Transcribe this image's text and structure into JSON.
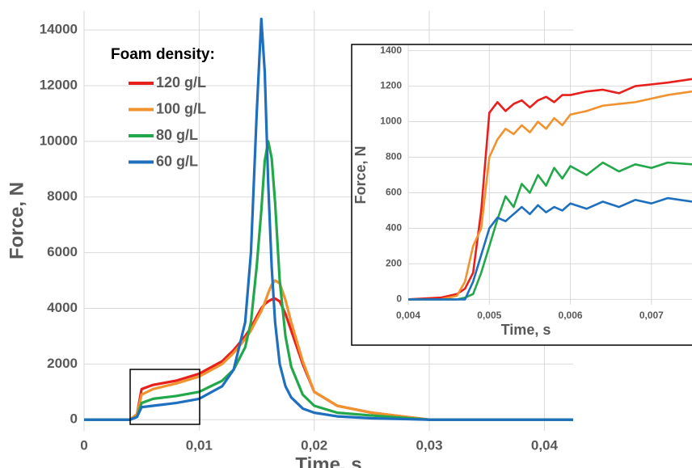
{
  "chart_data": [
    {
      "type": "line",
      "x_label": "Time, s",
      "y_label": "Force, N",
      "legend": "upper left",
      "legend_title": "Foam density:",
      "grid": true,
      "xlim": [
        0,
        0.0425
      ],
      "ylim": [
        -400,
        14700
      ],
      "xticks": [
        0,
        {
          "value": 0.01,
          "label": "0,01"
        },
        {
          "value": 0.02,
          "label": "0,02"
        },
        {
          "value": 0.03,
          "label": "0,03"
        },
        {
          "value": 0.04,
          "label": "0,04"
        }
      ],
      "yticks": [
        0,
        2000,
        4000,
        6000,
        8000,
        10000,
        12000,
        14000
      ],
      "x": [
        0,
        0.004,
        0.0046,
        0.005,
        0.006,
        0.008,
        0.01,
        0.012,
        0.013,
        0.014,
        0.0145,
        0.015,
        0.0154,
        0.0157,
        0.016,
        0.0163,
        0.0166,
        0.017,
        0.0175,
        0.018,
        0.019,
        0.02,
        0.022,
        0.025,
        0.03,
        0.035,
        0.0425
      ],
      "series": [
        {
          "name": "120 g/L",
          "color": "#e8201c",
          "values": [
            0,
            0,
            200,
            1100,
            1250,
            1400,
            1650,
            2100,
            2500,
            3000,
            3300,
            3700,
            4000,
            4150,
            4250,
            4320,
            4350,
            4250,
            3800,
            3200,
            2000,
            1000,
            500,
            250,
            0,
            0,
            0
          ]
        },
        {
          "name": "100 g/L",
          "color": "#f0922e",
          "values": [
            0,
            0,
            200,
            900,
            1100,
            1300,
            1550,
            2000,
            2400,
            2900,
            3200,
            3600,
            3900,
            4200,
            4550,
            4850,
            5000,
            4900,
            4300,
            3500,
            2100,
            1000,
            500,
            250,
            0,
            0,
            0
          ]
        },
        {
          "name": "80 g/L",
          "color": "#22a84a",
          "values": [
            0,
            0,
            100,
            600,
            750,
            850,
            1000,
            1400,
            1800,
            2600,
            3500,
            5500,
            7500,
            9300,
            10000,
            9400,
            7800,
            5000,
            3000,
            1900,
            900,
            500,
            250,
            150,
            0,
            0,
            0
          ]
        },
        {
          "name": "60 g/L",
          "color": "#1f6fbf",
          "values": [
            0,
            0,
            100,
            450,
            500,
            600,
            750,
            1200,
            1800,
            3500,
            6000,
            11000,
            14400,
            12500,
            8500,
            5500,
            3500,
            2000,
            1200,
            800,
            400,
            250,
            120,
            50,
            0,
            0,
            0
          ]
        }
      ]
    },
    {
      "type": "line",
      "x_label": "Time, s",
      "y_label": "Force, N",
      "grid": true,
      "xlim": [
        0.004,
        0.0075
      ],
      "ylim": [
        -30,
        1430
      ],
      "xticks": [
        {
          "value": 0.004,
          "label": "0,004"
        },
        {
          "value": 0.005,
          "label": "0,005"
        },
        {
          "value": 0.006,
          "label": "0,006"
        },
        {
          "value": 0.007,
          "label": "0,007"
        }
      ],
      "yticks": [
        0,
        200,
        400,
        600,
        800,
        1000,
        1200,
        1400
      ],
      "x": [
        0.004,
        0.0044,
        0.0046,
        0.0047,
        0.0048,
        0.0049,
        0.005,
        0.0051,
        0.0052,
        0.0053,
        0.0054,
        0.0055,
        0.0056,
        0.0057,
        0.0058,
        0.0059,
        0.006,
        0.0062,
        0.0064,
        0.0066,
        0.0068,
        0.007,
        0.0072,
        0.0075
      ],
      "series": [
        {
          "name": "120 g/L",
          "color": "#e8201c",
          "values": [
            0,
            10,
            30,
            60,
            150,
            500,
            1050,
            1110,
            1060,
            1100,
            1120,
            1080,
            1120,
            1140,
            1110,
            1150,
            1150,
            1170,
            1180,
            1160,
            1200,
            1210,
            1220,
            1240
          ]
        },
        {
          "name": "100 g/L",
          "color": "#f0922e",
          "values": [
            0,
            0,
            20,
            100,
            300,
            400,
            800,
            900,
            960,
            930,
            980,
            940,
            1000,
            960,
            1020,
            980,
            1040,
            1060,
            1090,
            1100,
            1110,
            1130,
            1150,
            1170
          ]
        },
        {
          "name": "80 g/L",
          "color": "#22a84a",
          "values": [
            0,
            0,
            0,
            10,
            30,
            150,
            300,
            450,
            580,
            520,
            650,
            600,
            700,
            640,
            740,
            680,
            750,
            700,
            770,
            720,
            760,
            740,
            770,
            760
          ]
        },
        {
          "name": "60 g/L",
          "color": "#1f6fbf",
          "values": [
            0,
            0,
            0,
            0,
            100,
            250,
            400,
            460,
            440,
            480,
            520,
            480,
            530,
            490,
            520,
            500,
            540,
            510,
            550,
            520,
            560,
            540,
            570,
            550
          ]
        }
      ]
    }
  ]
}
